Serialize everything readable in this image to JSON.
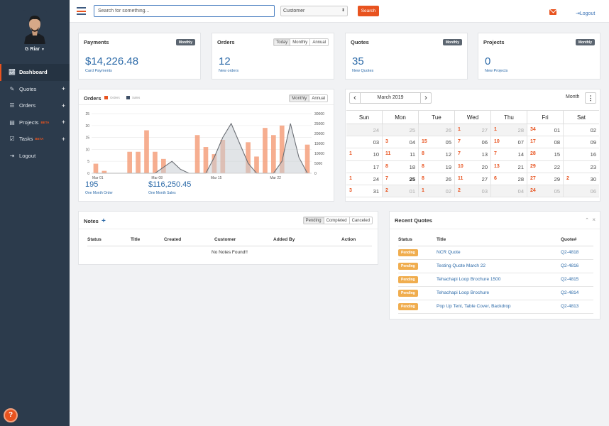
{
  "user": {
    "name": "G Riar"
  },
  "sidebar": {
    "items": [
      {
        "label": "Dashboard",
        "icon": "chart-icon"
      },
      {
        "label": "Quotes",
        "icon": "edit-icon"
      },
      {
        "label": "Orders",
        "icon": "list-icon"
      },
      {
        "label": "Projects",
        "icon": "board-icon",
        "beta": "BETA"
      },
      {
        "label": "Tasks",
        "icon": "tasks-icon",
        "beta": "BETA"
      },
      {
        "label": "Logout",
        "icon": "logout-icon"
      }
    ],
    "help": "?"
  },
  "topbar": {
    "search_placeholder": "Search for something...",
    "select_value": "Customer",
    "search_button": "Search",
    "logout": "Logout"
  },
  "stats": {
    "payments": {
      "title": "Payments",
      "badge": "Monthly",
      "value": "$14,226.48",
      "sub": "Card Payments"
    },
    "orders": {
      "title": "Orders",
      "tabs": [
        "Today",
        "Monthly",
        "Annual"
      ],
      "value": "12",
      "sub": "New orders"
    },
    "quotes": {
      "title": "Quotes",
      "badge": "Monthly",
      "value": "35",
      "sub": "New Quotes"
    },
    "projects": {
      "title": "Projects",
      "badge": "Monthly",
      "value": "0",
      "sub": "New Projects"
    }
  },
  "orders_chart": {
    "title": "Orders",
    "tabs": [
      "Monthly",
      "Annual"
    ],
    "legend": [
      "Orders",
      "Sales"
    ],
    "order_total": "195",
    "order_total_label": "One Month Order",
    "sales_total": "$116,250.45",
    "sales_total_label": "One Month Sales",
    "colors": {
      "orders": "#f4a07c",
      "sales": "#6b6f75",
      "sales_fill": "#c9ced4"
    }
  },
  "chart_data": {
    "type": "bar",
    "x_labels": [
      "Mar 01",
      "Mar 08",
      "Mar 15",
      "Mar 22"
    ],
    "categories": [
      "Mar 01",
      "Mar 02",
      "Mar 03",
      "Mar 04",
      "Mar 05",
      "Mar 06",
      "Mar 07",
      "Mar 08",
      "Mar 09",
      "Mar 10",
      "Mar 11",
      "Mar 12",
      "Mar 13",
      "Mar 14",
      "Mar 15",
      "Mar 16",
      "Mar 17",
      "Mar 18",
      "Mar 19",
      "Mar 20",
      "Mar 21",
      "Mar 22",
      "Mar 23",
      "Mar 24",
      "Mar 25",
      "Mar 26"
    ],
    "y_left": {
      "min": 0,
      "max": 25,
      "ticks": [
        0,
        5,
        10,
        15,
        20,
        25
      ]
    },
    "y_right": {
      "min": 0,
      "max": 30000,
      "ticks": [
        0,
        5000,
        10000,
        15000,
        20000,
        25000,
        30000
      ]
    },
    "series": [
      {
        "name": "Orders",
        "type": "bar",
        "axis": "left",
        "values": [
          4,
          1,
          0,
          0,
          9,
          9,
          18,
          9,
          6,
          0,
          0,
          0,
          16,
          11,
          8,
          14,
          0,
          0,
          13,
          7,
          19,
          16,
          20,
          0,
          0,
          12
        ]
      },
      {
        "name": "Sales",
        "type": "area-line",
        "axis": "right",
        "values": [
          0,
          0,
          0,
          0,
          0,
          0,
          0,
          0,
          3000,
          6000,
          2000,
          0,
          0,
          0,
          8000,
          18000,
          25000,
          15000,
          5000,
          0,
          0,
          0,
          6000,
          25000,
          8000,
          0
        ]
      }
    ]
  },
  "calendar": {
    "month": "March 2019",
    "view": "Month",
    "days": [
      "Sun",
      "Mon",
      "Tue",
      "Wed",
      "Thu",
      "Fri",
      "Sat"
    ],
    "weeks": [
      [
        {
          "d": "24",
          "o": true,
          "c": ""
        },
        {
          "d": "25",
          "o": true,
          "c": ""
        },
        {
          "d": "26",
          "o": true,
          "c": ""
        },
        {
          "d": "27",
          "o": true,
          "c": "1"
        },
        {
          "d": "28",
          "o": true,
          "c": "1"
        },
        {
          "d": "01",
          "o": false,
          "c": "34"
        },
        {
          "d": "02",
          "o": false,
          "c": ""
        }
      ],
      [
        {
          "d": "03",
          "o": false,
          "c": ""
        },
        {
          "d": "04",
          "o": false,
          "c": "3"
        },
        {
          "d": "05",
          "o": false,
          "c": "15"
        },
        {
          "d": "06",
          "o": false,
          "c": "7"
        },
        {
          "d": "07",
          "o": false,
          "c": "10"
        },
        {
          "d": "08",
          "o": false,
          "c": "17"
        },
        {
          "d": "09",
          "o": false,
          "c": ""
        }
      ],
      [
        {
          "d": "10",
          "o": false,
          "c": "1"
        },
        {
          "d": "11",
          "o": false,
          "c": "11"
        },
        {
          "d": "12",
          "o": false,
          "c": "8"
        },
        {
          "d": "13",
          "o": false,
          "c": "7"
        },
        {
          "d": "14",
          "o": false,
          "c": "7"
        },
        {
          "d": "15",
          "o": false,
          "c": "28"
        },
        {
          "d": "16",
          "o": false,
          "c": ""
        }
      ],
      [
        {
          "d": "17",
          "o": false,
          "c": ""
        },
        {
          "d": "18",
          "o": false,
          "c": "8"
        },
        {
          "d": "19",
          "o": false,
          "c": "8"
        },
        {
          "d": "20",
          "o": false,
          "c": "10"
        },
        {
          "d": "21",
          "o": false,
          "c": "13"
        },
        {
          "d": "22",
          "o": false,
          "c": "29"
        },
        {
          "d": "23",
          "o": false,
          "c": ""
        }
      ],
      [
        {
          "d": "24",
          "o": false,
          "c": "1"
        },
        {
          "d": "25",
          "o": false,
          "c": "7",
          "t": true
        },
        {
          "d": "26",
          "o": false,
          "c": "8"
        },
        {
          "d": "27",
          "o": false,
          "c": "11"
        },
        {
          "d": "28",
          "o": false,
          "c": "6"
        },
        {
          "d": "29",
          "o": false,
          "c": "27"
        },
        {
          "d": "30",
          "o": false,
          "c": "2"
        }
      ],
      [
        {
          "d": "31",
          "o": false,
          "c": "3"
        },
        {
          "d": "01",
          "o": true,
          "c": "2"
        },
        {
          "d": "02",
          "o": true,
          "c": "1"
        },
        {
          "d": "03",
          "o": true,
          "c": "2"
        },
        {
          "d": "04",
          "o": true,
          "c": ""
        },
        {
          "d": "05",
          "o": true,
          "c": "24"
        },
        {
          "d": "06",
          "o": true,
          "c": ""
        }
      ]
    ]
  },
  "notes": {
    "title": "Notes",
    "add": "+",
    "tabs": [
      "Pending",
      "Completed",
      "Canceled"
    ],
    "columns": [
      "Status",
      "Title",
      "Created",
      "Customer",
      "Added By",
      "Action"
    ],
    "empty": "No Notes Found!!"
  },
  "recent_quotes": {
    "title": "Recent Quotes",
    "columns": [
      "Status",
      "Title",
      "Quote#"
    ],
    "rows": [
      {
        "status": "Pending",
        "title": "NCR Quote",
        "quote": "Q2-4818"
      },
      {
        "status": "Pending",
        "title": "Testing Quote March 22",
        "quote": "Q2-4816"
      },
      {
        "status": "Pending",
        "title": "Tehachapi Loop Brochure 1500",
        "quote": "Q2-4815"
      },
      {
        "status": "Pending",
        "title": "Tehachapi Loop Brochure",
        "quote": "Q2-4814"
      },
      {
        "status": "Pending",
        "title": "Pop Up Tent, Table Cover, Backdrop",
        "quote": "Q2-4813"
      }
    ]
  }
}
